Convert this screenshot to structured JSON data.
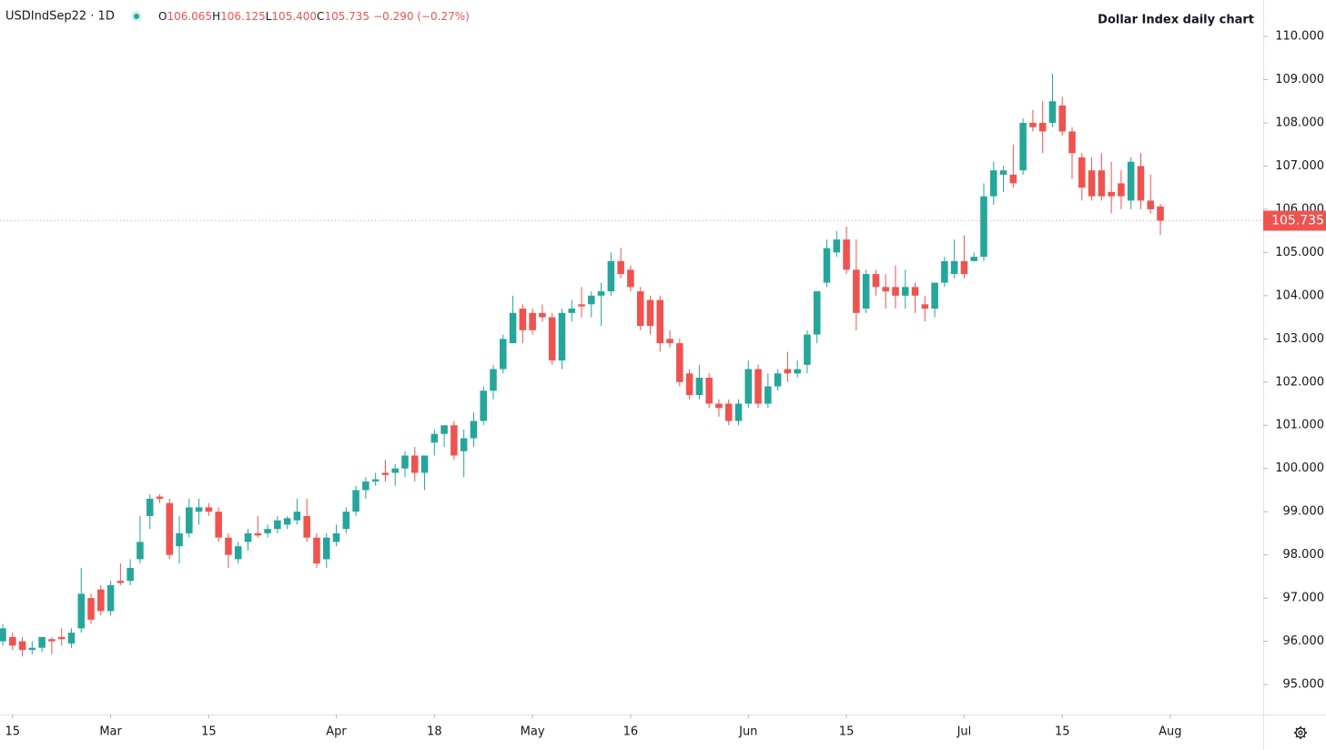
{
  "chart_data": {
    "type": "candlestick",
    "symbol": "USDIndSep22 · 1D",
    "legend": [
      {
        "label": "O",
        "value": "106.065"
      },
      {
        "label": "H",
        "value": "106.125"
      },
      {
        "label": "L",
        "value": "105.400"
      },
      {
        "label": "C",
        "value": "105.735"
      }
    ],
    "change": "−0.290 (−0.27%)",
    "title": "Dollar Index daily chart",
    "last_label": "105.735",
    "up_color": "#26a69a",
    "down_color": "#ef5350",
    "open": [
      96.0,
      96.1,
      96.0,
      95.8,
      95.85,
      96.05,
      96.1,
      95.95,
      96.3,
      97.0,
      97.2,
      96.7,
      97.4,
      97.4,
      97.9,
      98.9,
      99.35,
      99.2,
      98.2,
      98.5,
      99.0,
      99.1,
      99.0,
      98.4,
      97.9,
      98.3,
      98.5,
      98.5,
      98.6,
      98.7,
      98.8,
      98.9,
      98.4,
      97.9,
      98.3,
      98.6,
      99.0,
      99.5,
      99.7,
      99.9,
      99.9,
      100.0,
      100.3,
      99.9,
      100.6,
      100.8,
      101.0,
      100.4,
      100.7,
      101.1,
      101.8,
      102.3,
      102.9,
      103.7,
      103.6,
      103.6,
      103.5,
      102.5,
      103.6,
      103.8,
      103.8,
      104.0,
      104.1,
      104.8,
      104.6,
      104.1,
      103.9,
      103.9,
      103.0,
      102.9,
      102.2,
      101.7,
      102.1,
      101.5,
      101.5,
      101.1,
      101.5,
      102.3,
      101.5,
      101.9,
      102.3,
      102.2,
      102.4,
      103.1,
      104.3,
      105.0,
      105.3,
      104.6,
      103.7,
      104.5,
      104.2,
      104.2,
      104.0,
      104.2,
      103.8,
      103.7,
      104.3,
      104.5,
      104.8,
      104.8,
      104.9,
      106.3,
      106.8,
      106.8,
      106.9,
      108.0,
      108.0,
      108.0,
      108.4,
      107.8,
      107.2,
      106.9,
      106.9,
      106.4,
      106.6,
      106.2,
      107.0,
      106.2,
      106.065
    ],
    "high": [
      96.4,
      96.2,
      96.1,
      96.0,
      96.1,
      96.1,
      96.3,
      96.3,
      97.7,
      97.1,
      97.3,
      97.4,
      97.8,
      97.9,
      98.9,
      99.4,
      99.4,
      99.3,
      98.9,
      99.3,
      99.3,
      99.2,
      99.1,
      98.5,
      98.3,
      98.6,
      98.9,
      98.7,
      98.9,
      98.9,
      99.3,
      99.3,
      98.5,
      98.5,
      98.7,
      99.1,
      99.6,
      99.8,
      99.9,
      100.2,
      100.1,
      100.4,
      100.5,
      100.3,
      100.9,
      101.0,
      101.1,
      100.9,
      101.3,
      101.9,
      102.4,
      103.1,
      104.0,
      103.8,
      103.7,
      103.8,
      103.6,
      103.7,
      103.9,
      104.2,
      104.1,
      104.3,
      105.0,
      105.1,
      104.7,
      104.2,
      104.0,
      104.0,
      103.2,
      103.0,
      102.3,
      102.4,
      102.2,
      101.6,
      101.6,
      101.6,
      102.5,
      102.4,
      102.2,
      102.3,
      102.7,
      102.5,
      103.2,
      104.1,
      105.3,
      105.5,
      105.6,
      105.3,
      104.6,
      104.6,
      104.5,
      104.7,
      104.6,
      104.3,
      104.0,
      104.3,
      104.9,
      105.3,
      105.4,
      105.0,
      106.6,
      107.1,
      107.0,
      107.5,
      108.1,
      108.3,
      108.5,
      109.14,
      108.6,
      107.9,
      107.3,
      107.2,
      107.3,
      107.1,
      106.9,
      107.2,
      107.3,
      106.8,
      106.125
    ],
    "low": [
      95.9,
      95.8,
      95.65,
      95.7,
      95.75,
      95.7,
      95.9,
      95.85,
      96.2,
      96.4,
      96.6,
      96.6,
      97.3,
      97.3,
      97.8,
      98.6,
      99.2,
      97.9,
      97.8,
      98.4,
      98.7,
      98.9,
      98.3,
      97.7,
      97.8,
      98.1,
      98.4,
      98.4,
      98.5,
      98.6,
      98.7,
      98.3,
      97.7,
      97.7,
      98.2,
      98.5,
      98.9,
      99.3,
      99.6,
      99.7,
      99.6,
      99.8,
      99.7,
      99.5,
      100.3,
      100.5,
      100.2,
      99.8,
      100.5,
      101.0,
      101.6,
      102.2,
      102.9,
      102.9,
      103.1,
      103.4,
      102.4,
      102.3,
      103.4,
      103.5,
      103.5,
      103.3,
      104.0,
      104.4,
      104.1,
      103.2,
      103.1,
      102.7,
      102.8,
      101.9,
      101.6,
      101.6,
      101.4,
      101.2,
      101.0,
      101.0,
      101.4,
      101.4,
      101.4,
      101.8,
      102.0,
      102.1,
      102.2,
      102.9,
      104.2,
      104.9,
      104.5,
      103.2,
      103.6,
      104.0,
      103.7,
      103.7,
      103.7,
      103.6,
      103.4,
      103.5,
      104.2,
      104.4,
      104.4,
      104.8,
      104.8,
      106.1,
      106.4,
      106.5,
      106.8,
      107.8,
      107.3,
      107.9,
      107.7,
      106.7,
      106.2,
      106.2,
      106.2,
      105.9,
      106.0,
      106.0,
      106.0,
      105.9,
      105.4
    ],
    "close": [
      96.3,
      95.9,
      95.8,
      95.85,
      96.1,
      96.0,
      96.05,
      96.2,
      97.1,
      96.5,
      96.7,
      97.3,
      97.35,
      97.7,
      98.3,
      99.3,
      99.3,
      98.0,
      98.5,
      99.1,
      99.1,
      99.0,
      98.4,
      98.0,
      98.2,
      98.5,
      98.45,
      98.6,
      98.8,
      98.85,
      99.0,
      98.4,
      97.8,
      98.4,
      98.5,
      99.0,
      99.5,
      99.7,
      99.75,
      99.85,
      100.0,
      100.3,
      99.9,
      100.3,
      100.8,
      101.0,
      100.3,
      100.7,
      101.1,
      101.8,
      102.3,
      103.0,
      103.6,
      103.2,
      103.2,
      103.5,
      102.5,
      103.6,
      103.7,
      103.75,
      104.0,
      104.1,
      104.8,
      104.5,
      104.2,
      103.3,
      103.3,
      102.9,
      102.9,
      102.0,
      101.7,
      102.1,
      101.5,
      101.4,
      101.1,
      101.5,
      102.3,
      101.5,
      101.9,
      102.2,
      102.2,
      102.3,
      103.1,
      104.1,
      105.1,
      105.3,
      104.6,
      103.6,
      104.5,
      104.2,
      104.1,
      104.0,
      104.2,
      104.0,
      103.7,
      104.3,
      104.8,
      104.8,
      104.5,
      104.9,
      106.3,
      106.9,
      106.9,
      106.6,
      108.0,
      107.9,
      107.8,
      108.5,
      107.8,
      107.3,
      106.5,
      106.3,
      106.3,
      106.3,
      106.3,
      107.1,
      106.2,
      106.0,
      105.735
    ],
    "xlim": [
      -0.28,
      128.48
    ],
    "xticks": [
      {
        "value": 1,
        "label": "15"
      },
      {
        "value": 11,
        "label": "Mar"
      },
      {
        "value": 21,
        "label": "15"
      },
      {
        "value": 34,
        "label": "Apr"
      },
      {
        "value": 44,
        "label": "18"
      },
      {
        "value": 54,
        "label": "May"
      },
      {
        "value": 64,
        "label": "16"
      },
      {
        "value": 76,
        "label": "Jun"
      },
      {
        "value": 86,
        "label": "15"
      },
      {
        "value": 98,
        "label": "Jul"
      },
      {
        "value": 108,
        "label": "15"
      },
      {
        "value": 119,
        "label": "Aug"
      }
    ],
    "ylim": [
      94.306,
      110.843
    ],
    "yticks": [
      {
        "value": 95,
        "label": "95.000"
      },
      {
        "value": 96,
        "label": "96.000"
      },
      {
        "value": 97,
        "label": "97.000"
      },
      {
        "value": 98,
        "label": "98.000"
      },
      {
        "value": 99,
        "label": "99.000"
      },
      {
        "value": 100,
        "label": "100.000"
      },
      {
        "value": 101,
        "label": "101.000"
      },
      {
        "value": 102,
        "label": "102.000"
      },
      {
        "value": 103,
        "label": "103.000"
      },
      {
        "value": 104,
        "label": "104.000"
      },
      {
        "value": 105,
        "label": "105.000"
      },
      {
        "value": 106,
        "label": "106.000"
      },
      {
        "value": 107,
        "label": "107.000"
      },
      {
        "value": 108,
        "label": "108.000"
      },
      {
        "value": 109,
        "label": "109.000"
      },
      {
        "value": 110,
        "label": "110.000"
      }
    ]
  }
}
